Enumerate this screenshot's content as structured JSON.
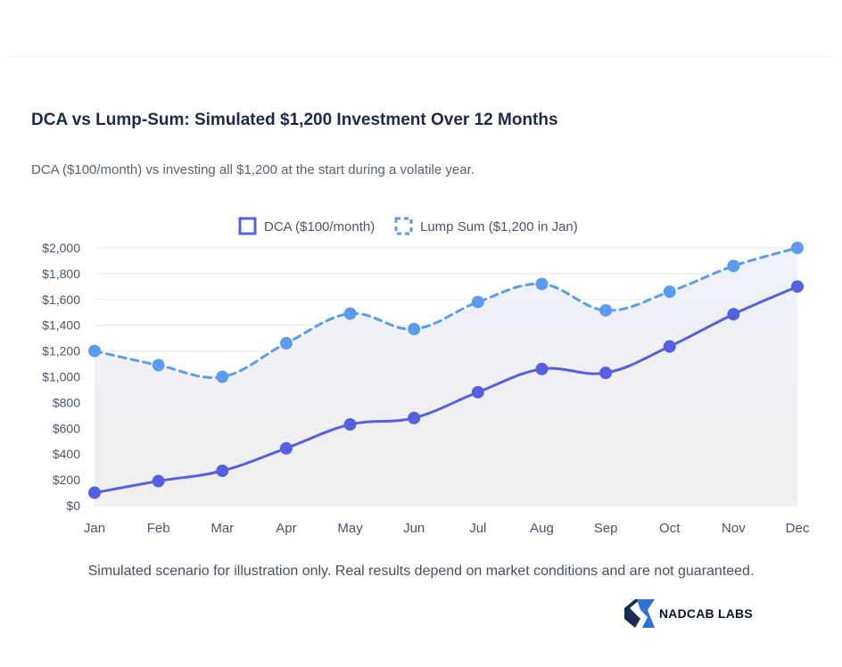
{
  "brand": {
    "name": "NADCAB LABS",
    "colors": {
      "dark": "#1b2a55",
      "light": "#2f6fd6"
    }
  },
  "footnote": "Simulated scenario for illustration only. Real results depend on market conditions and are not guaranteed.",
  "chart_data": {
    "type": "line",
    "title": "DCA vs Lump-Sum: Simulated $1,200 Investment Over 12 Months",
    "subtitle": "DCA ($100/month) vs investing all $1,200 at the start during a volatile year.",
    "categories": [
      "Jan",
      "Feb",
      "Mar",
      "Apr",
      "May",
      "Jun",
      "Jul",
      "Aug",
      "Sep",
      "Oct",
      "Nov",
      "Dec"
    ],
    "series": [
      {
        "name": "DCA ($100/month)",
        "style": "solid",
        "color": "#5560e0",
        "values": [
          100,
          190,
          270,
          445,
          630,
          680,
          880,
          1060,
          1030,
          1235,
          1485,
          1700
        ]
      },
      {
        "name": "Lump Sum ($1,200 in Jan)",
        "style": "dashed",
        "color": "#5b9cf0",
        "values": [
          1200,
          1090,
          1000,
          1260,
          1490,
          1370,
          1580,
          1720,
          1515,
          1660,
          1860,
          2000
        ]
      }
    ],
    "ylim": [
      0,
      2000
    ],
    "yticks": [
      0,
      200,
      400,
      600,
      800,
      1000,
      1200,
      1400,
      1600,
      1800,
      2000
    ],
    "ytick_labels": [
      "$0",
      "$200",
      "$400",
      "$600",
      "$800",
      "$1,000",
      "$1,200",
      "$1,400",
      "$1,600",
      "$1,800",
      "$2,000"
    ],
    "xlabel": "",
    "ylabel": "",
    "grid": true,
    "legend": "top-center"
  }
}
